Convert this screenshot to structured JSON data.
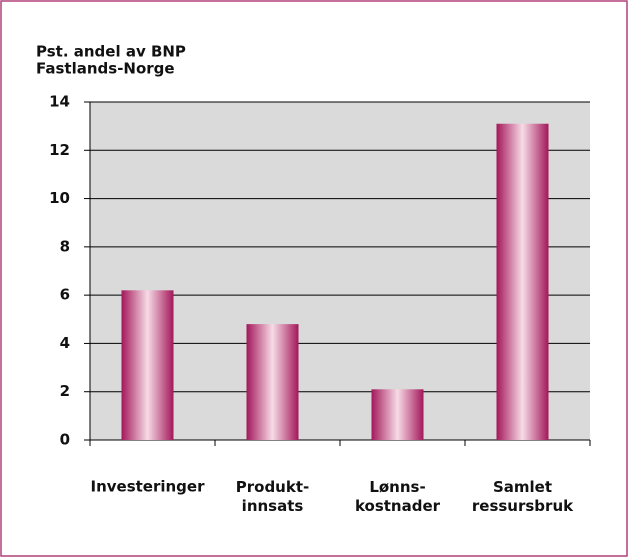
{
  "chart_data": {
    "type": "bar",
    "ylabel": [
      "Pst. andel av BNP",
      "Fastlands-Norge"
    ],
    "categories": [
      "Investeringer",
      "Produkt-\ninnsats",
      "Lønns-\nkostnader",
      "Samlet\nressursbruk"
    ],
    "values": [
      6.2,
      4.8,
      2.1,
      13.1
    ],
    "color": "#a3175a",
    "ylim": [
      0,
      14
    ],
    "yticks": [
      0,
      2,
      4,
      6,
      8,
      10,
      12,
      14
    ],
    "grid": true
  }
}
